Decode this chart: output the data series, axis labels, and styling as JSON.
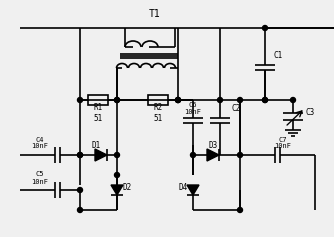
{
  "bg_color": "#f0f0f0",
  "line_color": "#000000",
  "line_width": 1.2,
  "fig_width": 3.34,
  "fig_height": 2.37,
  "title": "T1",
  "components": {
    "R1": {
      "label": "R1\n51"
    },
    "R2": {
      "label": "R2\n51"
    },
    "C1": {
      "label": "C1"
    },
    "C2": {
      "label": "C2"
    },
    "C3": {
      "label": "C3"
    },
    "C4": {
      "label": "C4\n10nF"
    },
    "C5": {
      "label": "C5\n10nF"
    },
    "C6": {
      "label": "C6\n10nF"
    },
    "C7": {
      "label": "C7\n10nF"
    },
    "D1": {
      "label": "D1"
    },
    "D2": {
      "label": "D2"
    },
    "D3": {
      "label": "D3"
    },
    "D4": {
      "label": "D4"
    }
  }
}
